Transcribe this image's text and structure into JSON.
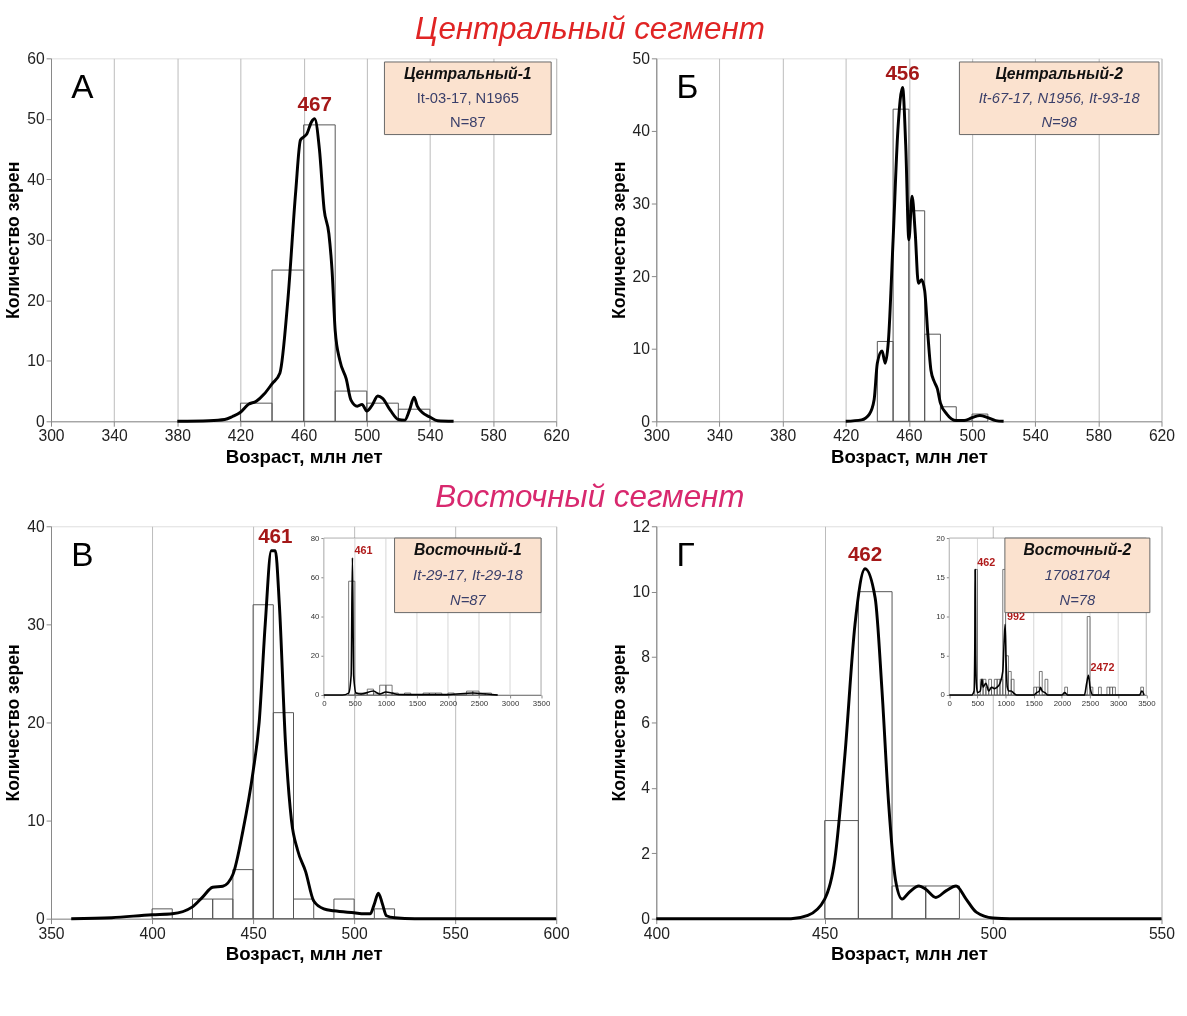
{
  "chart_data": [
    {
      "type": "histogram",
      "title": "Центральный сегмент",
      "xlabel": "Возраст, млн лет",
      "ylabel": "Количество зерен",
      "bins": [
        420,
        440,
        460,
        480,
        500,
        520,
        540
      ],
      "values": [
        3,
        25,
        49,
        5,
        3,
        2
      ],
      "color": "#555555",
      "series": [
        {
          "type": "line",
          "color": "#000000",
          "x": [
            380,
            400,
            410,
            415,
            420,
            425,
            430,
            435,
            440,
            445,
            450,
            455,
            458,
            460,
            462,
            465,
            467,
            470,
            473,
            476,
            478,
            480,
            483,
            487,
            490,
            494,
            497,
            500,
            503,
            507,
            510,
            515,
            520,
            524,
            527,
            530,
            532,
            535,
            540,
            545,
            555
          ],
          "values": [
            0,
            0.1,
            0.3,
            0.8,
            1.5,
            2.8,
            3.3,
            4.5,
            6.2,
            8,
            20,
            38,
            46.5,
            47,
            47.5,
            49.5,
            50,
            45,
            35,
            31,
            25,
            15,
            10,
            7,
            3.5,
            2.5,
            2.8,
            1.7,
            2.5,
            4.2,
            3.8,
            1.8,
            0.3,
            0.2,
            1.8,
            4,
            2.5,
            1.5,
            0.7,
            0.1,
            0
          ]
        }
      ],
      "xlim": [
        300,
        620
      ],
      "xticks": [
        300,
        340,
        380,
        420,
        460,
        500,
        540,
        580,
        620
      ],
      "ylim": [
        0,
        60
      ],
      "yticks": [
        0,
        10,
        20,
        30,
        40,
        50,
        60
      ],
      "grid": "x",
      "annotations": [
        "А",
        "Центральный-1",
        "It-03-17, N1965",
        "N=87",
        {
          "text": "467",
          "x": 467,
          "y": 50
        }
      ]
    },
    {
      "type": "histogram",
      "xlabel": "Возраст, млн лет",
      "ylabel": "Количество зерен",
      "bins": [
        440,
        450,
        460,
        470,
        480,
        490,
        500,
        510
      ],
      "values": [
        11,
        43,
        29,
        12,
        2,
        0,
        1
      ],
      "color": "#555555",
      "series": [
        {
          "type": "line",
          "color": "#000000",
          "x": [
            420,
            430,
            435,
            438,
            440,
            443,
            445,
            447,
            450,
            453,
            456,
            458,
            460,
            462,
            464,
            466,
            468,
            470,
            472,
            474,
            476,
            478,
            480,
            484,
            490,
            495,
            500,
            505,
            510,
            515,
            520
          ],
          "values": [
            0,
            0.2,
            1,
            3,
            8,
            9.7,
            8,
            11,
            25,
            40,
            46,
            38,
            25,
            31,
            26,
            19,
            19.5,
            18,
            12,
            7,
            5.5,
            4.5,
            2.5,
            1,
            0.1,
            0.1,
            0.5,
            0.8,
            0.5,
            0.1,
            0
          ]
        }
      ],
      "xlim": [
        300,
        620
      ],
      "xticks": [
        300,
        340,
        380,
        420,
        460,
        500,
        540,
        580,
        620
      ],
      "ylim": [
        0,
        50
      ],
      "yticks": [
        0,
        10,
        20,
        30,
        40,
        50
      ],
      "grid": "x",
      "annotations": [
        "Б",
        "Центральный-2",
        "It-67-17, N1956, It-93-18",
        "N=98",
        {
          "text": "456",
          "x": 456,
          "y": 46
        }
      ]
    },
    {
      "type": "histogram",
      "title": "Восточный сегмент",
      "xlabel": "Возраст, млн лет",
      "ylabel": "Количество зерен",
      "bins": [
        400,
        410,
        420,
        430,
        440,
        450,
        460,
        470,
        480,
        490,
        500,
        510,
        520
      ],
      "values": [
        1,
        0,
        2,
        2,
        5,
        32,
        21,
        2,
        0,
        2,
        0,
        1
      ],
      "color": "#555555",
      "series": [
        {
          "type": "line",
          "color": "#000000",
          "x": [
            360,
            380,
            400,
            410,
            420,
            425,
            430,
            435,
            440,
            445,
            450,
            453,
            456,
            459,
            461,
            463,
            466,
            469,
            472,
            476,
            480,
            485,
            490,
            500,
            505,
            508,
            510,
            512,
            514,
            516,
            520,
            530,
            600
          ],
          "values": [
            0,
            0.1,
            0.4,
            0.5,
            1.2,
            2.2,
            3.2,
            3.3,
            4.5,
            9,
            15,
            20,
            30,
            37.5,
            37.5,
            32,
            18,
            10,
            7,
            4.8,
            1.8,
            1,
            0.8,
            0.6,
            0.5,
            0.5,
            1.5,
            2.6,
            1.5,
            0.3,
            0.1,
            0,
            0
          ]
        }
      ],
      "xlim": [
        350,
        600
      ],
      "xticks": [
        350,
        400,
        450,
        500,
        550,
        600
      ],
      "ylim": [
        0,
        40
      ],
      "yticks": [
        0,
        10,
        20,
        30,
        40
      ],
      "grid": "x",
      "annotations": [
        "В",
        {
          "text": "461",
          "x": 461,
          "y": 37.5
        }
      ]
    },
    {
      "type": "histogram",
      "bins": [
        400,
        500,
        600,
        700,
        800,
        900,
        1000,
        1100,
        1200,
        1300,
        1400,
        1500,
        1600,
        1700,
        1800,
        1900,
        2000,
        2100,
        2200,
        2300,
        2400,
        2500,
        2600,
        2700,
        2800
      ],
      "values": [
        58,
        1,
        1,
        3,
        1,
        5,
        5,
        1,
        0,
        1,
        0,
        0,
        1,
        1,
        1,
        0,
        1,
        0,
        0,
        2,
        2,
        1,
        1,
        0
      ],
      "color": "#555555",
      "series": [
        {
          "type": "line",
          "color": "#000000",
          "x": [
            0,
            300,
            400,
            440,
            461,
            480,
            520,
            600,
            800,
            900,
            1000,
            1100,
            1200,
            1500,
            2000,
            2400,
            2500,
            2800
          ],
          "values": [
            0,
            0,
            1,
            10,
            70,
            10,
            1,
            0.5,
            2,
            0.5,
            1.5,
            1,
            0.3,
            0.2,
            0.2,
            1,
            0.8,
            0
          ]
        }
      ],
      "xlim": [
        0,
        3500
      ],
      "xticks": [
        0,
        500,
        1000,
        1500,
        2000,
        2500,
        3000,
        3500
      ],
      "ylim": [
        0,
        80
      ],
      "yticks": [
        0,
        20,
        40,
        60,
        80
      ],
      "grid": "x",
      "annotations": [
        "Восточный-1",
        "It-29-17, It-29-18",
        "N=87",
        {
          "text": "461",
          "x": 461,
          "y": 70
        }
      ]
    },
    {
      "type": "histogram",
      "xlabel": "Возраст, млн лет",
      "ylabel": "Количество зерен",
      "bins": [
        450,
        460,
        470,
        480,
        490
      ],
      "values": [
        3,
        10,
        1,
        1
      ],
      "color": "#555555",
      "series": [
        {
          "type": "line",
          "color": "#000000",
          "x": [
            400,
            440,
            445,
            450,
            453,
            456,
            459,
            462,
            465,
            467,
            469,
            471,
            473,
            475,
            478,
            480,
            483,
            486,
            489,
            492,
            495,
            500,
            505,
            550
          ],
          "values": [
            0,
            0,
            0.1,
            0.6,
            1.8,
            5,
            9,
            10.7,
            9.8,
            7,
            3.5,
            1.2,
            0.6,
            0.8,
            1,
            0.9,
            0.65,
            0.85,
            1,
            0.6,
            0.2,
            0.02,
            0,
            0
          ]
        }
      ],
      "xlim": [
        400,
        550
      ],
      "xticks": [
        400,
        450,
        500,
        550
      ],
      "ylim": [
        0,
        12
      ],
      "yticks": [
        0,
        2,
        4,
        6,
        8,
        10,
        12
      ],
      "grid": "x",
      "annotations": [
        "Г",
        {
          "text": "462",
          "x": 462,
          "y": 10.7
        }
      ]
    },
    {
      "type": "histogram",
      "bins": [
        450,
        500,
        550,
        600,
        650,
        700,
        750,
        800,
        850,
        900,
        950,
        1000,
        1050,
        1100,
        1150,
        1200,
        1250,
        1300,
        1350,
        1400,
        1450,
        1500,
        1550,
        1600,
        1650,
        1700,
        1750,
        1800,
        1850,
        1900,
        1950,
        2000,
        2050,
        2100,
        2150,
        2200,
        2250,
        2300,
        2350,
        2400,
        2450,
        2500,
        2550,
        2600,
        2650,
        2700,
        2750,
        2800,
        2850,
        2900,
        2950,
        3000,
        3050,
        3100,
        3150,
        3200,
        3250,
        3300,
        3350,
        3400,
        3450
      ],
      "values": [
        16,
        0,
        2,
        2,
        1,
        2,
        1,
        2,
        2,
        2,
        16,
        5,
        3,
        2,
        0,
        0,
        0,
        0,
        0,
        0,
        0,
        1,
        1,
        3,
        0,
        2,
        0,
        0,
        0,
        0,
        0,
        0,
        1,
        0,
        0,
        0,
        0,
        0,
        0,
        0,
        10,
        1,
        0,
        0,
        1,
        0,
        0,
        1,
        1,
        1,
        0,
        0,
        0,
        0,
        0,
        0,
        0,
        0,
        0,
        1
      ],
      "color": "#555555",
      "series": [
        {
          "type": "line",
          "color": "#000000",
          "x": [
            0,
            400,
            440,
            455,
            462,
            470,
            480,
            500,
            550,
            580,
            600,
            650,
            700,
            750,
            800,
            850,
            900,
            950,
            975,
            992,
            1010,
            1030,
            1060,
            1100,
            1150,
            1200,
            1500,
            1550,
            1600,
            1620,
            1650,
            1700,
            1750,
            2000,
            2050,
            2100,
            2400,
            2440,
            2472,
            2500,
            2550,
            3380,
            3420,
            3460
          ],
          "values": [
            0,
            0,
            0.5,
            8,
            16,
            5,
            1.5,
            0.3,
            0.5,
            2,
            1,
            1.5,
            0.5,
            1,
            0.8,
            1,
            1.5,
            3,
            7,
            9,
            4,
            1,
            0.5,
            0.5,
            0.2,
            0,
            0,
            0.3,
            0.5,
            1,
            0.5,
            0.3,
            0,
            0,
            0.3,
            0,
            0,
            1.5,
            2.5,
            1,
            0,
            0,
            0.5,
            0
          ]
        }
      ],
      "xlim": [
        0,
        3500
      ],
      "xticks": [
        0,
        500,
        1000,
        1500,
        2000,
        2500,
        3000,
        3500
      ],
      "ylim": [
        0,
        20
      ],
      "yticks": [
        0,
        5,
        10,
        15,
        20
      ],
      "grid": "x",
      "annotations": [
        "Восточный-2",
        "17081704",
        "N=78",
        {
          "text": "462",
          "x": 462,
          "y": 16
        },
        {
          "text": "992",
          "x": 992,
          "y": 9
        },
        {
          "text": "2472",
          "x": 2472,
          "y": 2.5
        }
      ]
    }
  ]
}
